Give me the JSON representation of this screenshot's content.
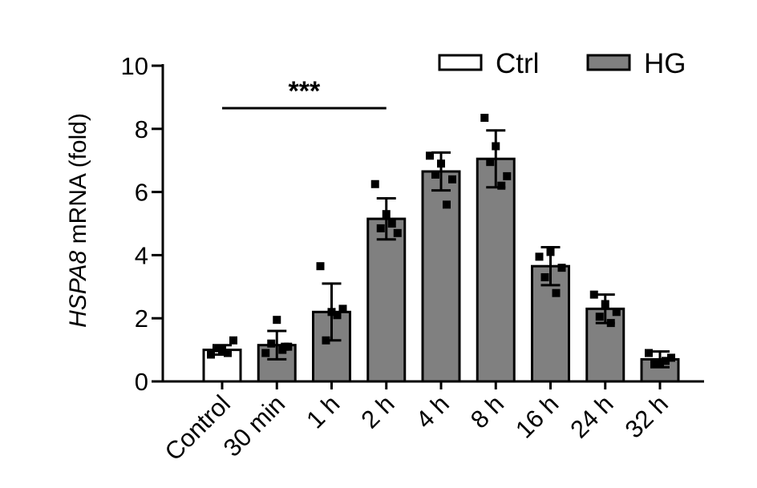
{
  "chart_data": {
    "type": "bar",
    "ylabel_italic": "HSPA8",
    "ylabel_rest": " mRNA (fold)",
    "ylim": [
      0,
      10
    ],
    "yticks": [
      "0",
      "2",
      "4",
      "6",
      "8",
      "10"
    ],
    "categories": [
      "Control",
      "30 min",
      "1 h",
      "2 h",
      "4 h",
      "8 h",
      "16 h",
      "24 h",
      "32 h"
    ],
    "values": [
      1.0,
      1.15,
      2.2,
      5.15,
      6.65,
      7.05,
      3.65,
      2.3,
      0.7
    ],
    "errors": [
      0.15,
      0.45,
      0.9,
      0.65,
      0.6,
      0.9,
      0.6,
      0.45,
      0.25
    ],
    "groups": [
      "Ctrl",
      "HG",
      "HG",
      "HG",
      "HG",
      "HG",
      "HG",
      "HG",
      "HG"
    ],
    "points": [
      [
        0.85,
        1.0,
        1.3,
        1.05,
        0.9
      ],
      [
        0.9,
        1.95,
        1.1,
        1.2,
        1.0,
        1.1
      ],
      [
        3.65,
        2.2,
        2.3,
        1.3,
        2.1
      ],
      [
        6.25,
        5.3,
        4.7,
        4.85,
        5.0
      ],
      [
        7.15,
        6.9,
        6.4,
        6.55,
        5.6
      ],
      [
        8.35,
        7.45,
        6.5,
        6.95,
        6.2
      ],
      [
        3.95,
        4.1,
        3.6,
        3.3,
        2.8
      ],
      [
        2.75,
        2.45,
        2.2,
        2.05,
        1.85
      ],
      [
        0.9,
        0.6,
        0.75,
        0.55,
        0.65
      ]
    ],
    "legend": [
      {
        "label": "Ctrl",
        "color": "#ffffff"
      },
      {
        "label": "HG",
        "color": "#808080"
      }
    ],
    "legend_position": "top-right",
    "annotation": {
      "text": "***",
      "from_category": "Control",
      "to_category": "2 h"
    },
    "colors": {
      "ctrl": "#ffffff",
      "hg": "#808080",
      "stroke": "#000000"
    }
  }
}
